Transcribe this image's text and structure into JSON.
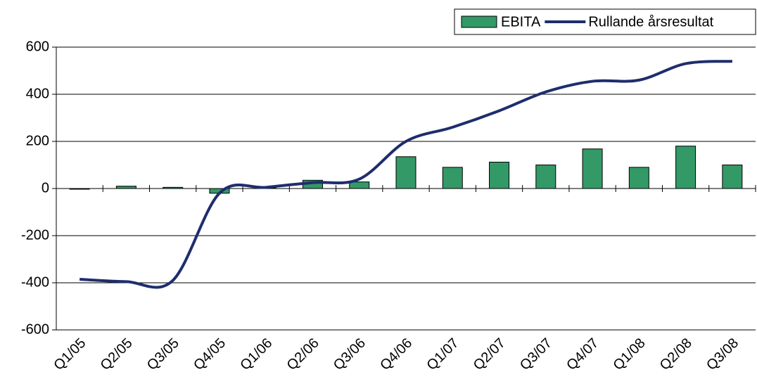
{
  "chart_data": {
    "type": "bar+line",
    "categories": [
      "Q1/05",
      "Q2/05",
      "Q3/05",
      "Q4/05",
      "Q1/06",
      "Q2/06",
      "Q3/06",
      "Q4/06",
      "Q1/07",
      "Q2/07",
      "Q3/07",
      "Q4/07",
      "Q1/08",
      "Q2/08",
      "Q3/08"
    ],
    "series": [
      {
        "name": "EBITA",
        "type": "bar",
        "color": "#339966",
        "values": [
          -3,
          10,
          5,
          -20,
          3,
          35,
          28,
          135,
          90,
          112,
          100,
          168,
          90,
          180,
          100
        ]
      },
      {
        "name": "Rullande årsresultat",
        "type": "line",
        "color": "#1f2d6e",
        "values": [
          -385,
          -395,
          -390,
          -20,
          5,
          25,
          40,
          200,
          260,
          330,
          410,
          455,
          460,
          530,
          540
        ]
      }
    ],
    "ylim": [
      -600,
      600
    ],
    "yticks": [
      -600,
      -400,
      -200,
      0,
      200,
      400,
      600
    ],
    "grid": true,
    "legend": "top-right"
  }
}
